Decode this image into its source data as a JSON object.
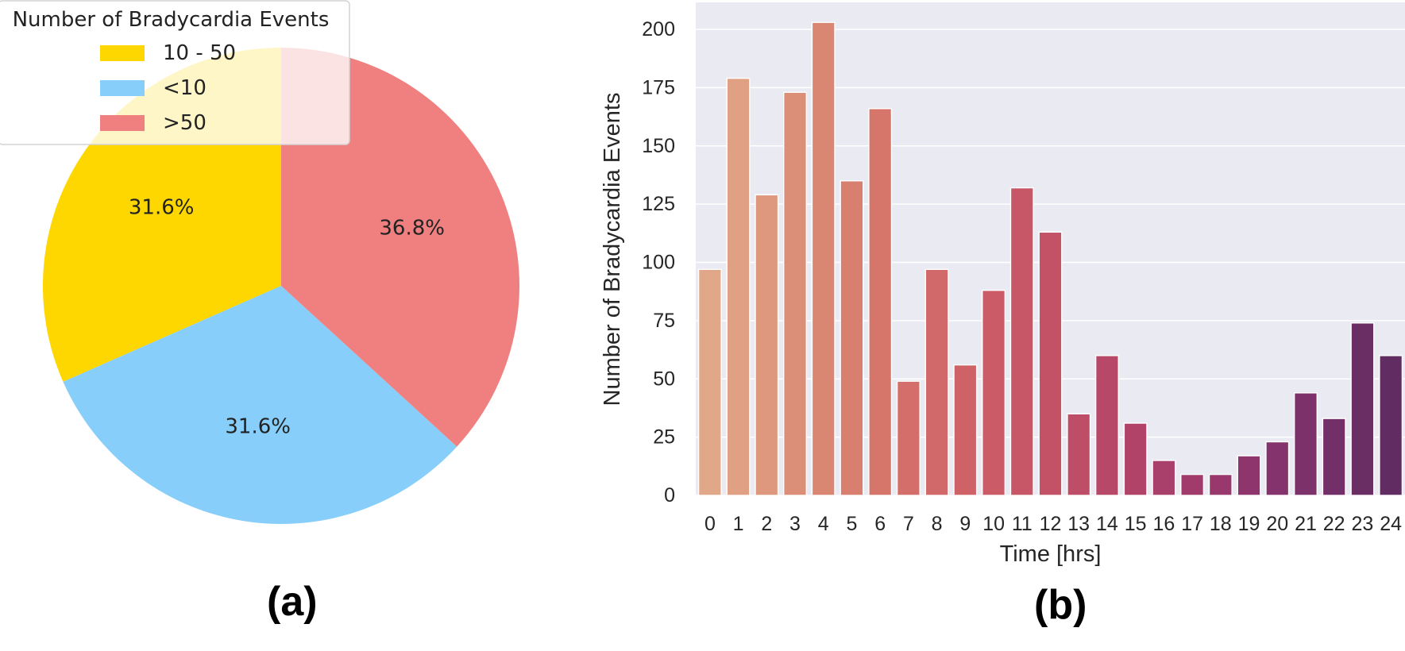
{
  "chart_data": [
    {
      "type": "pie",
      "legend": {
        "title": "Number of Bradycardia Events",
        "position": "top-left",
        "entries": [
          {
            "label": "10 - 50",
            "color": "#FFD700"
          },
          {
            "label": "<10",
            "color": "#87CEFA"
          },
          {
            "label": ">50",
            "color": "#F08080"
          }
        ]
      },
      "slices": [
        {
          "label": "10 - 50",
          "percent": 31.6,
          "text": "31.6%",
          "color": "#FFD700"
        },
        {
          "label": "<10",
          "percent": 31.6,
          "text": "31.6%",
          "color": "#87CEFA"
        },
        {
          "label": ">50",
          "percent": 36.8,
          "text": "36.8%",
          "color": "#F08080"
        }
      ]
    },
    {
      "type": "bar",
      "xlabel": "Time [hrs]",
      "ylabel": "Number of Bradycardia Events",
      "ylim": [
        0,
        212
      ],
      "yticks": [
        0,
        25,
        50,
        75,
        100,
        125,
        150,
        175,
        200
      ],
      "grid": true,
      "categories": [
        "0",
        "1",
        "2",
        "3",
        "4",
        "5",
        "6",
        "7",
        "8",
        "9",
        "10",
        "11",
        "12",
        "13",
        "14",
        "15",
        "16",
        "17",
        "18",
        "19",
        "20",
        "21",
        "22",
        "23",
        "24"
      ],
      "values": [
        97,
        179,
        129,
        173,
        203,
        135,
        166,
        49,
        97,
        56,
        88,
        132,
        113,
        35,
        60,
        31,
        15,
        9,
        9,
        17,
        23,
        44,
        33,
        74,
        60
      ],
      "colors": [
        "#E0A888",
        "#DFA083",
        "#DD987E",
        "#DB8F78",
        "#D98773",
        "#D87F6F",
        "#D6766B",
        "#D46E6A",
        "#D16869",
        "#CE6267",
        "#CB5C67",
        "#C75766",
        "#C35266",
        "#BE4D67",
        "#B84868",
        "#B14369",
        "#A93F6B",
        "#A13B6C",
        "#98386D",
        "#8F356D",
        "#85336C",
        "#7C316A",
        "#733068",
        "#6A2E65",
        "#602C62"
      ]
    }
  ],
  "panels": {
    "a": "(a)",
    "b": "(b)"
  }
}
